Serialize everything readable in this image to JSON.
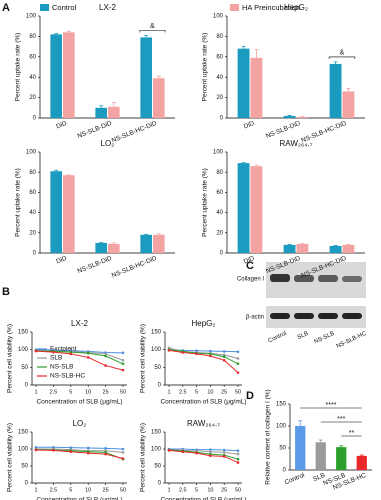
{
  "panel_labels": [
    "A",
    "B",
    "C",
    "D"
  ],
  "blot": {
    "rows": [
      "Collagen I",
      "β-actin"
    ],
    "lanes": [
      "Control",
      "SLB",
      "NS-SLB",
      "NS-SLB-HC"
    ]
  },
  "chart_data": [
    {
      "type": "bar",
      "title": "LX-2",
      "y_label": "Percent uptake rate (%)",
      "categories": [
        "DiD",
        "NS-SLB-DiD",
        "NS-SLB-HC-DiD"
      ],
      "series": [
        {
          "name": "Control",
          "color": "#1a9bbf",
          "values": [
            82,
            10,
            79
          ],
          "errors": [
            1,
            2,
            2
          ]
        },
        {
          "name": "HA Preincubation",
          "color": "#f4a3a3",
          "values": [
            84,
            11,
            39
          ],
          "errors": [
            1,
            4,
            2
          ]
        }
      ],
      "ylim": [
        0,
        100
      ],
      "yticks": [
        0,
        20,
        40,
        60,
        80,
        100
      ],
      "legend": "top",
      "annotations": [
        {
          "text": "&",
          "category": 2
        }
      ]
    },
    {
      "type": "bar",
      "title": "HepG₂",
      "y_label": "Percent uptake rate (%)",
      "categories": [
        "DiD",
        "NS-SLB-DiD",
        "NS-SLB-HC-DiD"
      ],
      "series": [
        {
          "name": "Control",
          "color": "#1a9bbf",
          "values": [
            68,
            2,
            53
          ],
          "errors": [
            2,
            0.5,
            2
          ]
        },
        {
          "name": "HA Preincubation",
          "color": "#f4a3a3",
          "values": [
            59,
            1,
            26
          ],
          "errors": [
            8,
            0.3,
            3
          ]
        }
      ],
      "ylim": [
        0,
        100
      ],
      "yticks": [
        0,
        20,
        40,
        60,
        80,
        100
      ],
      "annotations": [
        {
          "text": "&",
          "category": 2
        }
      ]
    },
    {
      "type": "bar",
      "title": "LO₂",
      "y_label": "Percent uptake rate (%)",
      "categories": [
        "DiD",
        "NS-SLB-DiD",
        "NS-SLB-HC-DiD"
      ],
      "series": [
        {
          "name": "Control",
          "color": "#1a9bbf",
          "values": [
            81,
            10,
            18
          ],
          "errors": [
            1,
            0.5,
            0.5
          ]
        },
        {
          "name": "HA Preincubation",
          "color": "#f4a3a3",
          "values": [
            77,
            9,
            18
          ],
          "errors": [
            0.5,
            1,
            1
          ]
        }
      ],
      "ylim": [
        0,
        100
      ],
      "yticks": [
        0,
        20,
        40,
        60,
        80,
        100
      ]
    },
    {
      "type": "bar",
      "title": "RAW₂₆₄.₇",
      "y_label": "Percent uptake rate (%)",
      "categories": [
        "DiD",
        "NS-SLB-DiD",
        "NS-SLB-HC-DiD"
      ],
      "series": [
        {
          "name": "Control",
          "color": "#1a9bbf",
          "values": [
            89,
            8,
            7
          ],
          "errors": [
            0.5,
            0.5,
            0.5
          ]
        },
        {
          "name": "HA Preincubation",
          "color": "#f4a3a3",
          "values": [
            86,
            9,
            8
          ],
          "errors": [
            1,
            0.5,
            0.5
          ]
        }
      ],
      "ylim": [
        0,
        100
      ],
      "yticks": [
        0,
        20,
        40,
        60,
        80,
        100
      ]
    },
    {
      "type": "line",
      "title": "LX-2",
      "y_label": "Percent cell viability (%)",
      "x_label": "Concentration of SLB (μg/mL)",
      "categories": [
        "1",
        "2.5",
        "5",
        "10",
        "25",
        "50"
      ],
      "series": [
        {
          "name": "Excipient",
          "color": "#4f8fe0",
          "values": [
            100,
            99,
            97,
            95,
            92,
            91
          ]
        },
        {
          "name": "SLB",
          "color": "#9a9a9a",
          "values": [
            98,
            96,
            94,
            92,
            88,
            70
          ]
        },
        {
          "name": "NS-SLB",
          "color": "#2ca02c",
          "values": [
            97,
            95,
            93,
            90,
            82,
            60
          ]
        },
        {
          "name": "NS-SLB-HC",
          "color": "#e8282a",
          "values": [
            96,
            93,
            88,
            78,
            55,
            42
          ]
        }
      ],
      "ylim": [
        0,
        150
      ],
      "yticks": [
        0,
        50,
        100,
        150
      ],
      "legend": "lower left"
    },
    {
      "type": "line",
      "title": "HepG₂",
      "y_label": "Percent cell viability (%)",
      "x_label": "Concentration of SLB (μg/mL)",
      "categories": [
        "1",
        "2.5",
        "5",
        "10",
        "25",
        "50"
      ],
      "series": [
        {
          "name": "Excipient",
          "color": "#4f8fe0",
          "values": [
            100,
            98,
            97,
            96,
            95,
            94
          ]
        },
        {
          "name": "SLB",
          "color": "#9a9a9a",
          "values": [
            105,
            95,
            92,
            90,
            85,
            75
          ]
        },
        {
          "name": "NS-SLB",
          "color": "#2ca02c",
          "values": [
            100,
            95,
            90,
            88,
            80,
            60
          ]
        },
        {
          "name": "NS-SLB-HC",
          "color": "#e8282a",
          "values": [
            98,
            92,
            88,
            82,
            70,
            35
          ]
        }
      ],
      "ylim": [
        0,
        150
      ],
      "yticks": [
        0,
        50,
        100,
        150
      ]
    },
    {
      "type": "line",
      "title": "LO₂",
      "y_label": "Percent cell viability (%)",
      "x_label": "Concentration of SLB (μg/mL)",
      "categories": [
        "1",
        "2.5",
        "5",
        "10",
        "25",
        "50"
      ],
      "series": [
        {
          "name": "Excipient",
          "color": "#4f8fe0",
          "values": [
            105,
            105,
            104,
            103,
            102,
            100
          ]
        },
        {
          "name": "SLB",
          "color": "#9a9a9a",
          "values": [
            100,
            100,
            98,
            95,
            95,
            90
          ]
        },
        {
          "name": "NS-SLB",
          "color": "#2ca02c",
          "values": [
            98,
            97,
            95,
            92,
            90,
            70
          ]
        },
        {
          "name": "NS-SLB-HC",
          "color": "#e8282a",
          "values": [
            97,
            96,
            92,
            88,
            85,
            72
          ]
        }
      ],
      "ylim": [
        0,
        150
      ],
      "yticks": [
        0,
        50,
        100,
        150
      ]
    },
    {
      "type": "line",
      "title": "RAW₂₆₄.₇",
      "y_label": "Percent cell viability (%)",
      "x_label": "Concentration of SLB (μg/mL)",
      "categories": [
        "1",
        "2.5",
        "5",
        "10",
        "25",
        "50"
      ],
      "series": [
        {
          "name": "Excipient",
          "color": "#4f8fe0",
          "values": [
            100,
            100,
            98,
            98,
            97,
            95
          ]
        },
        {
          "name": "SLB",
          "color": "#9a9a9a",
          "values": [
            98,
            96,
            95,
            92,
            90,
            85
          ]
        },
        {
          "name": "NS-SLB",
          "color": "#2ca02c",
          "values": [
            97,
            94,
            90,
            85,
            82,
            70
          ]
        },
        {
          "name": "NS-SLB-HC",
          "color": "#e8282a",
          "values": [
            96,
            92,
            88,
            80,
            78,
            60
          ]
        }
      ],
      "ylim": [
        0,
        150
      ],
      "yticks": [
        0,
        50,
        100,
        150
      ]
    },
    {
      "type": "bar",
      "y_label": "Relative content of collagen I (%)",
      "categories": [
        "Control",
        "SLB",
        "NS-SLB",
        "NS-SLB-HC"
      ],
      "values": [
        100,
        63,
        52,
        32
      ],
      "errors": [
        12,
        5,
        3,
        2
      ],
      "colors": [
        "#5b9ae6",
        "#9a9a9a",
        "#2ca02c",
        "#e8282a"
      ],
      "ylim": [
        0,
        150
      ],
      "yticks": [
        0,
        50,
        100,
        150
      ],
      "brackets": [
        {
          "text": "****",
          "from": 0,
          "to": 3
        },
        {
          "text": "***",
          "from": 1,
          "to": 3
        },
        {
          "text": "**",
          "from": 2,
          "to": 3
        }
      ]
    }
  ]
}
